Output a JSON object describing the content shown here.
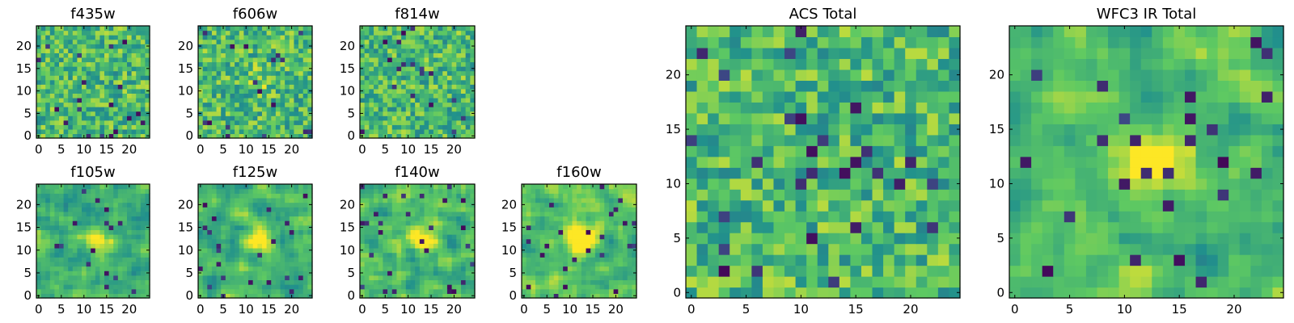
{
  "figure": {
    "colormap": "viridis",
    "colormap_colors": [
      "#440154",
      "#3b528b",
      "#21918c",
      "#5ec962",
      "#fde725"
    ]
  },
  "chart_data": [
    {
      "type": "heatmap",
      "id": "f435w",
      "title": "f435w",
      "grid_size": 25,
      "xticks": [
        "0",
        "5",
        "10",
        "15",
        "20"
      ],
      "yticks": [
        "0",
        "5",
        "10",
        "15",
        "20"
      ],
      "xlim": [
        0,
        25
      ],
      "ylim": [
        0,
        25
      ],
      "grid": false
    },
    {
      "type": "heatmap",
      "id": "f606w",
      "title": "f606w",
      "grid_size": 25,
      "xticks": [
        "0",
        "5",
        "10",
        "15",
        "20"
      ],
      "yticks": [
        "0",
        "5",
        "10",
        "15",
        "20"
      ],
      "xlim": [
        0,
        25
      ],
      "ylim": [
        0,
        25
      ],
      "grid": false
    },
    {
      "type": "heatmap",
      "id": "f814w",
      "title": "f814w",
      "grid_size": 25,
      "xticks": [
        "0",
        "5",
        "10",
        "15",
        "20"
      ],
      "yticks": [
        "0",
        "5",
        "10",
        "15",
        "20"
      ],
      "xlim": [
        0,
        25
      ],
      "ylim": [
        0,
        25
      ],
      "grid": false
    },
    {
      "type": "heatmap",
      "id": "f105w",
      "title": "f105w",
      "grid_size": 25,
      "xticks": [
        "0",
        "5",
        "10",
        "15",
        "20"
      ],
      "yticks": [
        "0",
        "5",
        "10",
        "15",
        "20"
      ],
      "xlim": [
        0,
        25
      ],
      "ylim": [
        0,
        25
      ],
      "grid": false
    },
    {
      "type": "heatmap",
      "id": "f125w",
      "title": "f125w",
      "grid_size": 25,
      "xticks": [
        "0",
        "5",
        "10",
        "15",
        "20"
      ],
      "yticks": [
        "0",
        "5",
        "10",
        "15",
        "20"
      ],
      "xlim": [
        0,
        25
      ],
      "ylim": [
        0,
        25
      ],
      "grid": false
    },
    {
      "type": "heatmap",
      "id": "f140w",
      "title": "f140w",
      "grid_size": 25,
      "xticks": [
        "0",
        "5",
        "10",
        "15",
        "20"
      ],
      "yticks": [
        "0",
        "5",
        "10",
        "15",
        "20"
      ],
      "xlim": [
        0,
        25
      ],
      "ylim": [
        0,
        25
      ],
      "grid": false
    },
    {
      "type": "heatmap",
      "id": "f160w",
      "title": "f160w",
      "grid_size": 25,
      "xticks": [
        "0",
        "5",
        "10",
        "15",
        "20"
      ],
      "yticks": [
        "0",
        "5",
        "10",
        "15",
        "20"
      ],
      "xlim": [
        0,
        25
      ],
      "ylim": [
        0,
        25
      ],
      "grid": false
    },
    {
      "type": "heatmap",
      "id": "acs-total",
      "title": "ACS Total",
      "grid_size": 25,
      "xticks": [
        "0",
        "5",
        "10",
        "15",
        "20"
      ],
      "yticks": [
        "0",
        "5",
        "10",
        "15",
        "20"
      ],
      "xlim": [
        0,
        25
      ],
      "ylim": [
        0,
        25
      ],
      "grid": false
    },
    {
      "type": "heatmap",
      "id": "wfc3-ir-total",
      "title": "WFC3 IR Total",
      "grid_size": 25,
      "xticks": [
        "0",
        "5",
        "10",
        "15",
        "20"
      ],
      "yticks": [
        "0",
        "5",
        "10",
        "15",
        "20"
      ],
      "xlim": [
        0,
        25
      ],
      "ylim": [
        0,
        25
      ],
      "grid": false
    }
  ]
}
